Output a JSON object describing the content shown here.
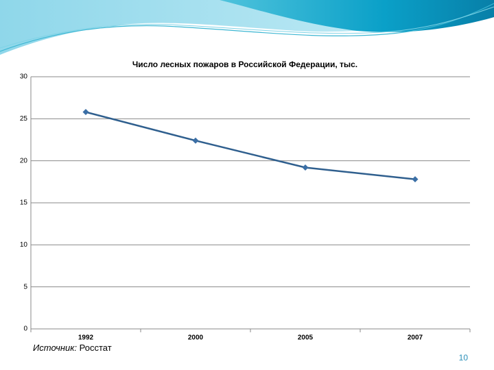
{
  "chart_data": {
    "type": "line",
    "title": "Число лесных пожаров в Российской Федерации, тыс.",
    "categories": [
      "1992",
      "2000",
      "2005",
      "2007"
    ],
    "values": [
      25.8,
      22.4,
      19.2,
      17.8
    ],
    "color": "#2f5f8e",
    "marker_color": "#3b6fa6",
    "ylim": [
      0,
      30
    ],
    "yticks": [
      0,
      5,
      10,
      15,
      20,
      25,
      30
    ],
    "grid": true
  },
  "source": {
    "label": "Источник:",
    "text": "Росстат"
  },
  "page_number": "10"
}
